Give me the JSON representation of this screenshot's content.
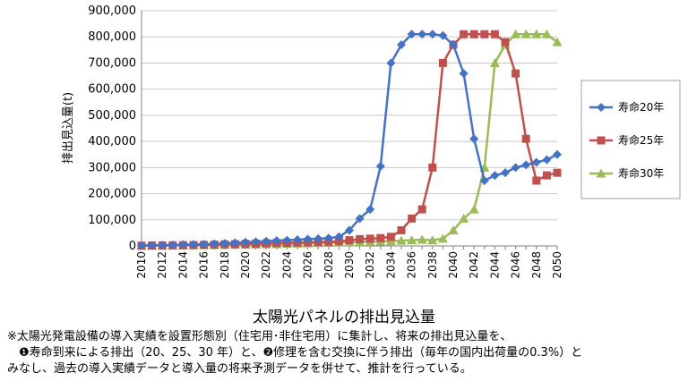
{
  "chart_data": {
    "type": "line",
    "title": "太陽光パネルの排出見込量",
    "ylabel": "排出見込量(t)",
    "xlabel": "",
    "ylim": [
      0,
      900000
    ],
    "yticks": [
      "0",
      "100,000",
      "200,000",
      "300,000",
      "400,000",
      "500,000",
      "600,000",
      "700,000",
      "800,000",
      "900,000"
    ],
    "legend_position": "right",
    "grid": "horizontal",
    "x": [
      2010,
      2011,
      2012,
      2013,
      2014,
      2015,
      2016,
      2017,
      2018,
      2019,
      2020,
      2021,
      2022,
      2023,
      2024,
      2025,
      2026,
      2027,
      2028,
      2029,
      2030,
      2031,
      2032,
      2033,
      2034,
      2035,
      2036,
      2037,
      2038,
      2039,
      2040,
      2041,
      2042,
      2043,
      2044,
      2045,
      2046,
      2047,
      2048,
      2049,
      2050
    ],
    "xticks": [
      "2010",
      "2012",
      "2014",
      "2016",
      "2018",
      "2020",
      "2022",
      "2024",
      "2026",
      "2028",
      "2030",
      "2032",
      "2034",
      "2036",
      "2038",
      "2040",
      "2042",
      "2044",
      "2046",
      "2048",
      "2050"
    ],
    "series": [
      {
        "name": "寿命20年",
        "color": "#4472C4",
        "marker": "diamond",
        "values": [
          2000,
          2500,
          3000,
          4000,
          5000,
          6000,
          7000,
          8000,
          10000,
          12000,
          14000,
          16000,
          18000,
          20000,
          22000,
          24000,
          26000,
          28000,
          30000,
          35000,
          60000,
          105000,
          140000,
          305000,
          700000,
          770000,
          810000,
          810000,
          810000,
          805000,
          770000,
          660000,
          410000,
          250000,
          270000,
          280000,
          300000,
          310000,
          320000,
          330000,
          350000
        ]
      },
      {
        "name": "寿命25年",
        "color": "#C0504D",
        "marker": "square",
        "values": [
          1000,
          1500,
          2000,
          2500,
          3000,
          3500,
          4000,
          5000,
          6000,
          7000,
          8000,
          9000,
          10000,
          11000,
          12000,
          13000,
          14000,
          15000,
          16000,
          18000,
          22000,
          26000,
          28000,
          30000,
          35000,
          60000,
          105000,
          140000,
          300000,
          700000,
          770000,
          810000,
          810000,
          810000,
          810000,
          780000,
          660000,
          410000,
          250000,
          270000,
          280000
        ]
      },
      {
        "name": "寿命30年",
        "color": "#9BBB59",
        "marker": "triangle",
        "values": [
          500,
          800,
          1000,
          1500,
          2000,
          2500,
          3000,
          3500,
          4000,
          4500,
          5000,
          5500,
          6000,
          7000,
          8000,
          9000,
          10000,
          11000,
          12000,
          13000,
          14000,
          15000,
          16000,
          17000,
          18000,
          20000,
          22000,
          24000,
          22000,
          28000,
          60000,
          105000,
          140000,
          300000,
          700000,
          770000,
          810000,
          810000,
          810000,
          810000,
          780000
        ]
      }
    ]
  },
  "notes": [
    "※太陽光発電設備の導入実績を設置形態別（住宅用･非住宅用）に集計し、将来の排出見込量を、",
    "　❶寿命到来による排出（20、25、30 年）と、❷修理を含む交換に伴う排出（毎年の国内出荷量の0.3%）と",
    "みなし、過去の導入実績データと導入量の将来予測データを併せて、推計を行っている。"
  ]
}
